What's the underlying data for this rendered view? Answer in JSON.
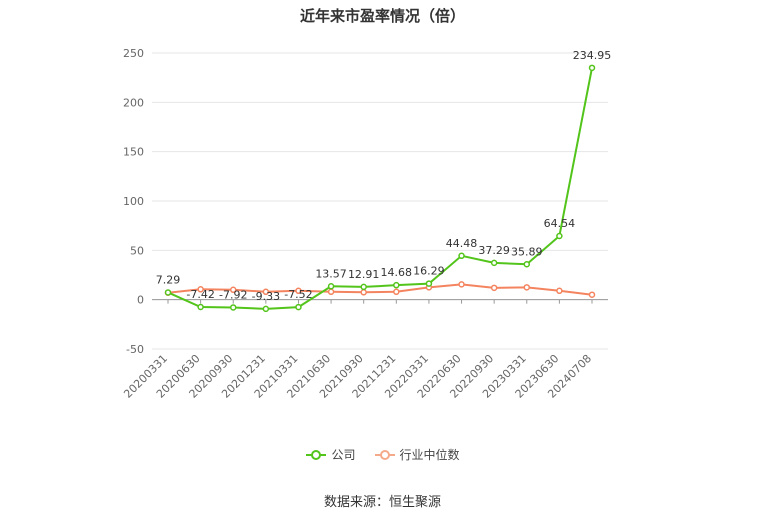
{
  "title": "近年来市盈率情况（倍）",
  "source": "数据来源：恒生聚源",
  "chart_data": {
    "type": "line",
    "categories": [
      "20200331",
      "20200630",
      "20200930",
      "20201231",
      "20210331",
      "20210630",
      "20210930",
      "20211231",
      "20220331",
      "20220630",
      "20220930",
      "20230331",
      "20230630",
      "20240708"
    ],
    "ylim": [
      -50,
      250
    ],
    "yticks": [
      -50,
      0,
      50,
      100,
      150,
      200,
      250
    ],
    "grid": true,
    "legend_position": "bottom",
    "series": [
      {
        "name": "公司",
        "color": "#52c41a",
        "values": [
          7.29,
          -7.42,
          -7.92,
          -9.33,
          -7.52,
          13.57,
          12.91,
          14.68,
          16.29,
          44.48,
          37.29,
          35.89,
          64.54,
          234.95
        ],
        "labels": [
          "7.29",
          "-7.42",
          "-7.92",
          "-9.33",
          "-7.52",
          "13.57",
          "12.91",
          "14.68",
          "16.29",
          "44.48",
          "37.29",
          "35.89",
          "64.54",
          "234.95"
        ]
      },
      {
        "name": "行业中位数",
        "color": "#f4845f",
        "values": [
          7.0,
          10.5,
          10.0,
          8.0,
          9.0,
          8.0,
          7.5,
          8.0,
          12.5,
          15.5,
          12.0,
          12.5,
          9.0,
          5.0
        ]
      }
    ]
  }
}
